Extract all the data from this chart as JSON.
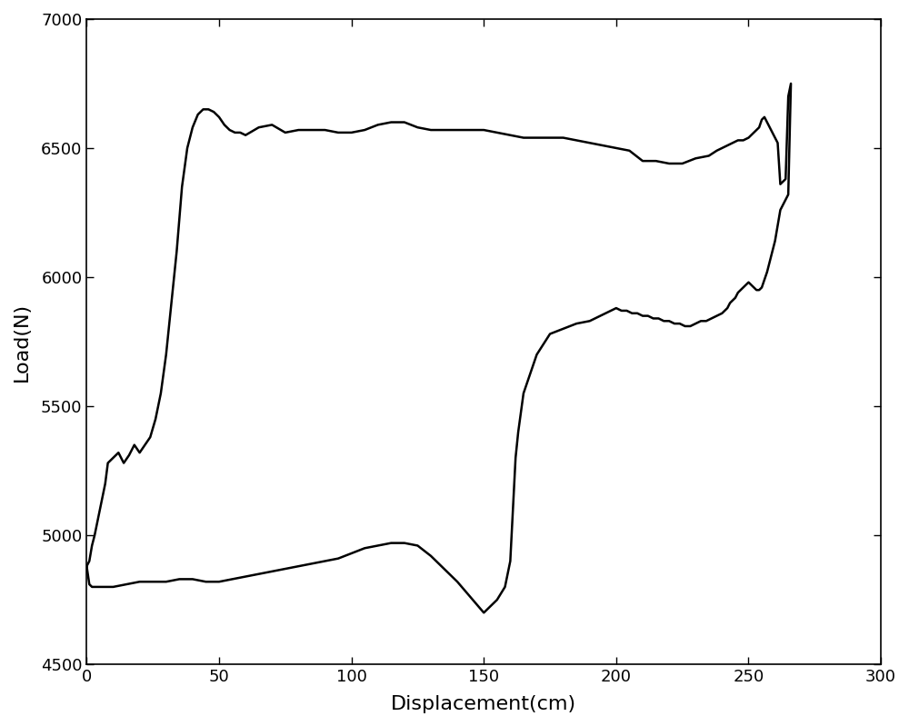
{
  "xlabel": "Displacement(cm)",
  "ylabel": "Load(N)",
  "xlim": [
    0,
    300
  ],
  "ylim": [
    4500,
    7000
  ],
  "xticks": [
    0,
    50,
    100,
    150,
    200,
    250,
    300
  ],
  "yticks": [
    4500,
    5000,
    5500,
    6000,
    6500,
    7000
  ],
  "line_color": "#000000",
  "line_width": 1.8,
  "background_color": "#ffffff",
  "upper_x": [
    0,
    1,
    2,
    3,
    4,
    5,
    6,
    7,
    8,
    10,
    12,
    14,
    16,
    18,
    20,
    22,
    24,
    26,
    28,
    30,
    32,
    34,
    36,
    38,
    40,
    42,
    44,
    46,
    48,
    50,
    52,
    54,
    56,
    58,
    60,
    65,
    70,
    75,
    80,
    85,
    90,
    95,
    100,
    105,
    110,
    115,
    120,
    125,
    130,
    135,
    140,
    145,
    150,
    155,
    160,
    165,
    170,
    175,
    180,
    185,
    190,
    195,
    200,
    205,
    210,
    215,
    220,
    225,
    230,
    235,
    238,
    240,
    242,
    244,
    246,
    248,
    250,
    251,
    252,
    253,
    254,
    255,
    256,
    257,
    258,
    259,
    260,
    261,
    262,
    263,
    264,
    265,
    266
  ],
  "upper_y": [
    4880,
    4900,
    4960,
    5000,
    5050,
    5100,
    5150,
    5200,
    5280,
    5300,
    5320,
    5280,
    5310,
    5350,
    5320,
    5350,
    5380,
    5450,
    5550,
    5700,
    5900,
    6100,
    6350,
    6500,
    6580,
    6630,
    6650,
    6650,
    6640,
    6620,
    6590,
    6570,
    6560,
    6560,
    6550,
    6580,
    6590,
    6560,
    6570,
    6570,
    6570,
    6560,
    6560,
    6570,
    6590,
    6600,
    6600,
    6580,
    6570,
    6570,
    6570,
    6570,
    6570,
    6560,
    6550,
    6540,
    6540,
    6540,
    6540,
    6530,
    6520,
    6510,
    6500,
    6490,
    6450,
    6450,
    6440,
    6440,
    6460,
    6470,
    6490,
    6500,
    6510,
    6520,
    6530,
    6530,
    6540,
    6550,
    6560,
    6570,
    6580,
    6610,
    6620,
    6600,
    6580,
    6560,
    6540,
    6520,
    6360,
    6370,
    6380,
    6700,
    6750
  ],
  "lower_x": [
    266,
    265,
    264,
    263,
    262,
    261,
    260,
    259,
    258,
    257,
    256,
    255,
    254,
    253,
    252,
    251,
    250,
    249,
    248,
    247,
    246,
    245,
    244,
    243,
    242,
    241,
    240,
    238,
    236,
    234,
    232,
    230,
    228,
    226,
    224,
    222,
    220,
    218,
    216,
    214,
    212,
    210,
    208,
    206,
    204,
    202,
    200,
    198,
    196,
    194,
    192,
    190,
    185,
    180,
    175,
    170,
    165,
    163,
    162,
    161,
    160,
    158,
    155,
    150,
    145,
    140,
    135,
    130,
    125,
    120,
    115,
    110,
    105,
    100,
    95,
    90,
    85,
    80,
    75,
    70,
    65,
    60,
    55,
    50,
    45,
    40,
    35,
    30,
    25,
    20,
    15,
    10,
    8,
    6,
    4,
    2,
    1,
    0
  ],
  "lower_y": [
    6750,
    6320,
    6300,
    6280,
    6260,
    6200,
    6140,
    6100,
    6060,
    6020,
    5990,
    5960,
    5950,
    5950,
    5960,
    5970,
    5980,
    5970,
    5960,
    5950,
    5940,
    5920,
    5910,
    5900,
    5880,
    5870,
    5860,
    5850,
    5840,
    5830,
    5830,
    5820,
    5810,
    5810,
    5820,
    5820,
    5830,
    5830,
    5840,
    5840,
    5850,
    5850,
    5860,
    5860,
    5870,
    5870,
    5880,
    5870,
    5860,
    5850,
    5840,
    5830,
    5820,
    5800,
    5780,
    5700,
    5550,
    5400,
    5300,
    5100,
    4900,
    4800,
    4750,
    4700,
    4760,
    4820,
    4870,
    4920,
    4960,
    4970,
    4970,
    4960,
    4950,
    4930,
    4910,
    4900,
    4890,
    4880,
    4870,
    4860,
    4850,
    4840,
    4830,
    4820,
    4820,
    4830,
    4830,
    4820,
    4820,
    4820,
    4810,
    4800,
    4800,
    4800,
    4800,
    4800,
    4810,
    4880
  ]
}
